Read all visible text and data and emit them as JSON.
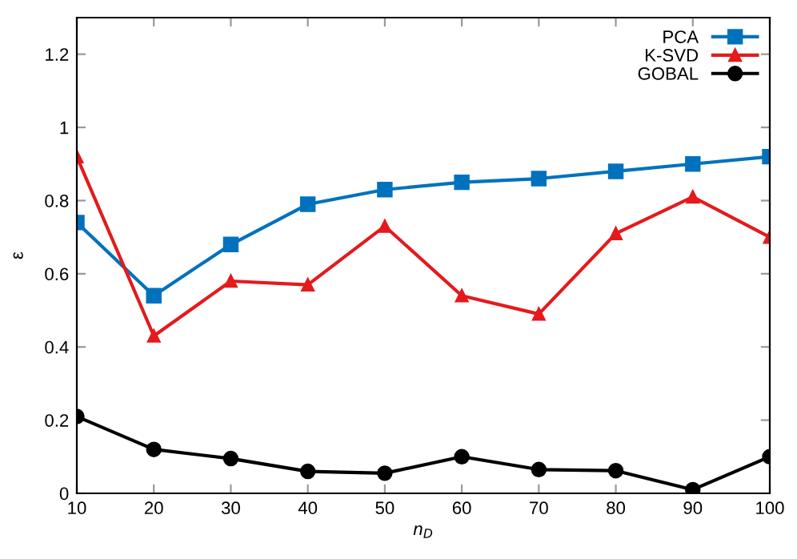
{
  "chart_data": {
    "type": "line",
    "xlabel": "n$_{D}$",
    "ylabel": "ε",
    "x": [
      10,
      20,
      30,
      40,
      50,
      60,
      70,
      80,
      90,
      100
    ],
    "series": [
      {
        "name": "PCA",
        "color": "#0072bd",
        "marker": "square",
        "values": [
          0.74,
          0.54,
          0.68,
          0.79,
          0.83,
          0.85,
          0.86,
          0.88,
          0.9,
          0.92
        ]
      },
      {
        "name": "K-SVD",
        "color": "#e41a1c",
        "marker": "triangle",
        "values": [
          0.92,
          0.43,
          0.58,
          0.57,
          0.73,
          0.54,
          0.49,
          0.71,
          0.81,
          0.7
        ]
      },
      {
        "name": "GOBAL",
        "color": "#000000",
        "marker": "circle",
        "values": [
          0.21,
          0.12,
          0.095,
          0.06,
          0.055,
          0.1,
          0.065,
          0.062,
          0.01,
          0.1
        ]
      }
    ],
    "xlim": [
      10,
      100
    ],
    "xticks": [
      10,
      20,
      30,
      40,
      50,
      60,
      70,
      80,
      90,
      100
    ],
    "ylim": [
      0,
      1.3
    ],
    "yticks": [
      0,
      0.2,
      0.4,
      0.6,
      0.8,
      1,
      1.2
    ],
    "grid": false,
    "legend": "top right",
    "line_style": "solid"
  }
}
